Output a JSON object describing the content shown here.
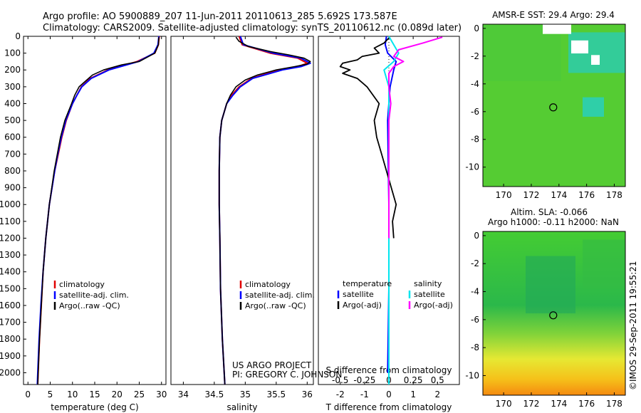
{
  "header": {
    "line1": "Argo profile: AO 5900889_207 11-Jun-2011 20110613_285 5.692S 173.587E",
    "line2": "Climatology: CARS2009. Satellite-adjusted climatology: synTS_20110612.nc (0.089d later)"
  },
  "credit": "©IMOS 29-Sep-2011 19:55:21",
  "colors": {
    "climatology": "#e00000",
    "satellite": "#0000ff",
    "argo": "#000000",
    "salinity_satellite": "#00e5ee",
    "salinity_argo": "#ff00ff"
  },
  "chart_data": [
    {
      "id": "temperature",
      "type": "line",
      "xlabel": "temperature (deg C)",
      "xlim": [
        -1,
        31
      ],
      "ylim": [
        2070,
        0
      ],
      "xticks": [
        0,
        5,
        10,
        15,
        20,
        25,
        30
      ],
      "xtick_labels": [
        "0",
        "5",
        "10",
        "15",
        "20",
        "25",
        "30"
      ],
      "yticks": [
        0,
        100,
        200,
        300,
        400,
        500,
        600,
        700,
        800,
        900,
        1000,
        1100,
        1200,
        1300,
        1400,
        1500,
        1600,
        1700,
        1800,
        1900,
        2000
      ],
      "ytick_labels": [
        "0",
        "100",
        "200",
        "300",
        "400",
        "500",
        "600",
        "700",
        "800",
        "900",
        "1000",
        "1100",
        "1200",
        "1300",
        "1400",
        "1500",
        "1600",
        "1700",
        "1800",
        "1900",
        "2000"
      ],
      "legend": [
        {
          "label": "climatology",
          "series": "climatology"
        },
        {
          "label": "satellite-adj. clim.",
          "series": "satellite"
        },
        {
          "label": "Argo(..raw -QC)",
          "series": "argo"
        }
      ],
      "legend_position": "lower-center",
      "series": [
        {
          "name": "climatology",
          "depth": [
            0,
            50,
            100,
            150,
            180,
            200,
            250,
            300,
            350,
            400,
            500,
            600,
            700,
            800,
            1000,
            1200,
            1400,
            1600,
            1800,
            2000,
            2070
          ],
          "values": [
            29.5,
            29.3,
            28.5,
            24.5,
            20.5,
            18,
            14,
            12,
            11,
            10,
            8.6,
            7.6,
            6.8,
            6,
            4.8,
            4,
            3.4,
            3,
            2.6,
            2.3,
            2.2
          ]
        },
        {
          "name": "satellite",
          "depth": [
            0,
            50,
            100,
            150,
            180,
            200,
            250,
            300,
            350,
            400,
            500,
            600,
            700,
            800,
            1000,
            1200,
            1400,
            1600,
            1800,
            2000,
            2070
          ],
          "values": [
            29.4,
            29.2,
            28.3,
            24.8,
            20.8,
            18.2,
            14.2,
            12.1,
            11,
            10,
            8.5,
            7.5,
            6.7,
            6,
            4.8,
            4,
            3.4,
            2.9,
            2.5,
            2.2,
            2.1
          ]
        },
        {
          "name": "argo",
          "depth": [
            5,
            50,
            100,
            150,
            170,
            200,
            230,
            260,
            300,
            350,
            400,
            500,
            600,
            700,
            800,
            1000,
            1200,
            1400,
            1600,
            1800,
            2000,
            2070
          ],
          "values": [
            29.4,
            29.3,
            28.5,
            25,
            21,
            17,
            14.5,
            13.2,
            11.5,
            10.5,
            9.8,
            8.3,
            7.3,
            6.6,
            5.9,
            4.8,
            4,
            3.4,
            3,
            2.6,
            2.3,
            2.2
          ]
        }
      ]
    },
    {
      "id": "salinity",
      "type": "line",
      "xlabel": "salinity",
      "xlim": [
        33.8,
        36.1
      ],
      "ylim": [
        2070,
        0
      ],
      "xticks": [
        34,
        34.5,
        35,
        35.5,
        36
      ],
      "xtick_labels": [
        "34",
        "34.5",
        "35",
        "35.5",
        "36"
      ],
      "legend": [
        {
          "label": "climatology",
          "series": "climatology"
        },
        {
          "label": "satellite-adj. clim.",
          "series": "satellite"
        },
        {
          "label": "Argo(..raw -QC)",
          "series": "argo"
        }
      ],
      "legend_position": "lower-center",
      "annotation": [
        "US ARGO PROJECT",
        "PI: GREGORY C. JOHNSON"
      ],
      "series": [
        {
          "name": "climatology",
          "depth": [
            0,
            50,
            100,
            130,
            160,
            180,
            200,
            250,
            300,
            350,
            400,
            500,
            600,
            800,
            1000,
            1200,
            1500,
            1800,
            2000,
            2070
          ],
          "values": [
            34.9,
            34.95,
            35.4,
            35.85,
            36.0,
            35.85,
            35.55,
            35.1,
            34.9,
            34.78,
            34.7,
            34.62,
            34.59,
            34.58,
            34.58,
            34.59,
            34.6,
            34.63,
            34.66,
            34.67
          ]
        },
        {
          "name": "satellite",
          "depth": [
            0,
            50,
            100,
            130,
            160,
            180,
            200,
            250,
            300,
            350,
            400,
            500,
            600,
            800,
            1000,
            1200,
            1500,
            1800,
            2000,
            2070
          ],
          "values": [
            34.92,
            34.97,
            35.45,
            35.9,
            36.05,
            35.9,
            35.6,
            35.12,
            34.92,
            34.8,
            34.7,
            34.62,
            34.59,
            34.58,
            34.58,
            34.59,
            34.6,
            34.63,
            34.66,
            34.67
          ]
        },
        {
          "name": "argo",
          "depth": [
            5,
            30,
            60,
            90,
            110,
            130,
            150,
            165,
            180,
            200,
            230,
            260,
            300,
            350,
            400,
            500,
            600,
            800,
            1000,
            1200,
            1500,
            1800,
            2000,
            2070
          ],
          "values": [
            34.85,
            34.9,
            35.05,
            35.4,
            35.7,
            35.95,
            36.05,
            36.0,
            35.8,
            35.5,
            35.2,
            35.0,
            34.85,
            34.76,
            34.7,
            34.62,
            34.59,
            34.58,
            34.58,
            34.59,
            34.6,
            34.63,
            34.66,
            34.67
          ]
        }
      ]
    },
    {
      "id": "difference",
      "type": "line",
      "xlabel": "T difference from climatology",
      "top_label": "S difference from climatology",
      "xlim": [
        -2.9,
        2.9
      ],
      "ylim": [
        2070,
        0
      ],
      "xticks": [
        -2,
        -1,
        0,
        1,
        2
      ],
      "xtick_labels": [
        "-2",
        "-1",
        "0",
        "1",
        "2"
      ],
      "sticks": [
        -0.5,
        -0.25,
        0,
        0.25,
        0.5
      ],
      "stick_labels": [
        "-0.5",
        "-0.25",
        "0",
        "0.25",
        "0.5"
      ],
      "legend_temperature": {
        "title": "temperature",
        "items": [
          {
            "label": "satellite",
            "series": "t_satellite"
          },
          {
            "label": "Argo(-adj)",
            "series": "t_argo"
          }
        ]
      },
      "legend_salinity": {
        "title": "salinity",
        "items": [
          {
            "label": "satellite",
            "series": "s_satellite"
          },
          {
            "label": "Argo(-adj)",
            "series": "s_argo"
          }
        ]
      },
      "series": [
        {
          "name": "t_satellite",
          "color_key": "satellite",
          "depth": [
            0,
            50,
            100,
            150,
            200,
            300,
            500,
            1000,
            1500,
            2000
          ],
          "values": [
            -0.1,
            -0.15,
            -0.05,
            0.3,
            0.2,
            0.05,
            -0.05,
            0,
            0,
            -0.05
          ]
        },
        {
          "name": "t_argo",
          "color_key": "argo",
          "depth": [
            10,
            40,
            70,
            100,
            120,
            140,
            160,
            180,
            200,
            220,
            250,
            300,
            400,
            500,
            600,
            700,
            800,
            900,
            1000,
            1100,
            1200
          ],
          "values": [
            0,
            -0.2,
            -0.6,
            -0.4,
            -1.1,
            -1.3,
            -1.9,
            -2.0,
            -1.6,
            -1.9,
            -1.3,
            -0.9,
            -0.4,
            -0.6,
            -0.5,
            -0.3,
            -0.1,
            0.1,
            0.3,
            0.15,
            0.2
          ]
        },
        {
          "name": "s_satellite",
          "color_key": "salinity_satellite",
          "depth": [
            0,
            50,
            100,
            150,
            200,
            300,
            500,
            1000,
            1500,
            2000,
            2070
          ],
          "values": [
            0,
            0.05,
            0.1,
            0.05,
            -0.05,
            0,
            0,
            0,
            0,
            0,
            0
          ]
        },
        {
          "name": "s_argo",
          "color_key": "salinity_argo",
          "depth": [
            5,
            40,
            80,
            120,
            150,
            180,
            220,
            300,
            400,
            500,
            700,
            1000,
            1200
          ],
          "values": [
            0.55,
            0.35,
            0.1,
            0.05,
            0.15,
            0.05,
            0.0,
            0.0,
            0.02,
            0.0,
            0.0,
            0.0,
            0.0
          ]
        }
      ]
    },
    {
      "id": "sst_map",
      "type": "heatmap",
      "title": "AMSR-E SST: 29.4  Argo: 29.4",
      "xlim": [
        168.5,
        178.8
      ],
      "ylim": [
        -11.4,
        0.3
      ],
      "xticks": [
        170,
        172,
        174,
        176,
        178
      ],
      "xtick_labels": [
        "170",
        "172",
        "174",
        "176",
        "178"
      ],
      "yticks": [
        0,
        -2,
        -4,
        -6,
        -8,
        -10
      ],
      "ytick_labels": [
        "0",
        "-2",
        "-4",
        "-6",
        "-8",
        "-10"
      ],
      "marker": {
        "lon": 173.587,
        "lat": -5.692
      }
    },
    {
      "id": "sla_map",
      "type": "heatmap",
      "title_line1": "Altim. SLA: -0.066",
      "title_line2": "Argo h1000: -0.11 h2000: NaN",
      "xlim": [
        168.5,
        178.8
      ],
      "ylim": [
        -11.4,
        0.3
      ],
      "xticks": [
        170,
        172,
        174,
        176,
        178
      ],
      "xtick_labels": [
        "170",
        "172",
        "174",
        "176",
        "178"
      ],
      "yticks": [
        0,
        -2,
        -4,
        -6,
        -8,
        -10
      ],
      "ytick_labels": [
        "0",
        "-2",
        "-4",
        "-6",
        "-8",
        "-10"
      ],
      "marker": {
        "lon": 173.587,
        "lat": -5.692
      }
    }
  ]
}
